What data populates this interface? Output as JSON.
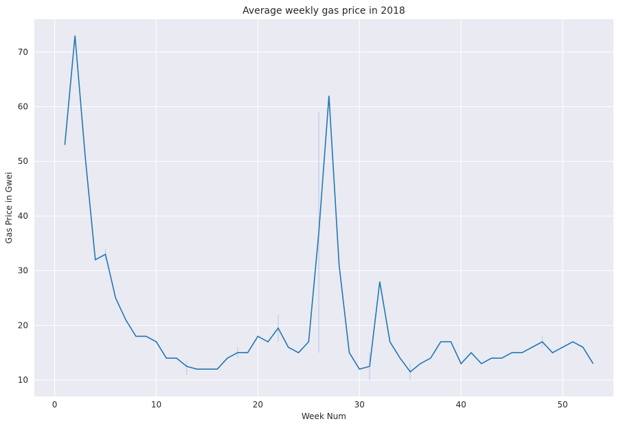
{
  "chart_data": {
    "type": "line",
    "title": "Average weekly gas price in 2018",
    "xlabel": "Week Num",
    "ylabel": "Gas Price in Gwei",
    "xlim": [
      -2,
      55
    ],
    "ylim": [
      7,
      76
    ],
    "xticks": [
      0,
      10,
      20,
      30,
      40,
      50
    ],
    "yticks": [
      10,
      20,
      30,
      40,
      50,
      60,
      70
    ],
    "grid": true,
    "colors": {
      "background": "#eaeaf2",
      "grid": "#ffffff",
      "line": "#1f77b4",
      "error": "#aec7e8"
    },
    "series": [
      {
        "x": [
          1,
          2,
          3,
          4,
          5,
          6,
          7,
          8,
          9,
          10,
          11,
          12,
          13,
          14,
          15,
          16,
          17,
          18,
          19,
          20,
          21,
          22,
          23,
          24,
          25,
          26,
          27,
          28,
          29,
          30,
          31,
          32,
          33,
          34,
          35,
          36,
          37,
          38,
          39,
          40,
          41,
          42,
          43,
          44,
          45,
          46,
          47,
          48,
          49,
          50,
          51,
          52,
          53
        ],
        "y": [
          53,
          73,
          51,
          32,
          33,
          25,
          21,
          18,
          18,
          17,
          14,
          14,
          12.5,
          12,
          12,
          12,
          14,
          15,
          15,
          18,
          17,
          19.5,
          16,
          15,
          17,
          37,
          62,
          31,
          15,
          12,
          12.5,
          28,
          17,
          14,
          11.5,
          13,
          14,
          17,
          17,
          13,
          15,
          13,
          14,
          14,
          15,
          15,
          16,
          17,
          15,
          16,
          17,
          16,
          13
        ]
      }
    ],
    "error_bars": [
      {
        "x": 5,
        "low": 32,
        "high": 34
      },
      {
        "x": 13,
        "low": 11,
        "high": 13.5
      },
      {
        "x": 18,
        "low": 14,
        "high": 16
      },
      {
        "x": 22,
        "low": 17,
        "high": 22
      },
      {
        "x": 26,
        "low": 15,
        "high": 59
      },
      {
        "x": 31,
        "low": 10,
        "high": 15
      },
      {
        "x": 35,
        "low": 10,
        "high": 13
      },
      {
        "x": 48,
        "low": 16,
        "high": 18
      }
    ]
  }
}
